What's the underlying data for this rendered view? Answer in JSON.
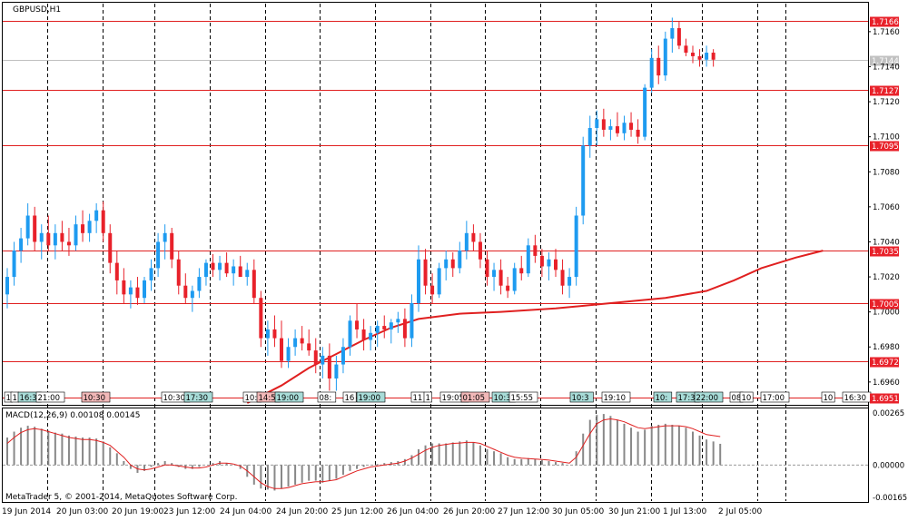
{
  "symbol_label": "GBPUSD,H1",
  "copyright": "MetaTrader 5, © 2001-2014, MetaQuotes Software Corp.",
  "macd_label": "MACD(12,26,9) 0.00108 0.00145",
  "colors": {
    "bull": "#1e9bf0",
    "bear": "#e8212a",
    "line": "#e02020",
    "grid": "#000000",
    "macd_hist": "#888888",
    "macd_signal": "#e02020",
    "label_bg_red": "#e8212a",
    "current_price_bg": "#c0c0c0"
  },
  "price_axis": {
    "ticks": [
      "1.7160",
      "1.7140",
      "1.7120",
      "1.7100",
      "1.7080",
      "1.7060",
      "1.7040",
      "1.7020",
      "1.7000",
      "1.6980",
      "1.6960"
    ],
    "current_price": "1.7144",
    "levels": [
      "1.7166",
      "1.7127",
      "1.7095",
      "1.7035",
      "1.7005",
      "1.6972",
      "1.6951"
    ]
  },
  "macd_axis": {
    "ticks": [
      "0.00265",
      "0.00000",
      "-0.00165"
    ]
  },
  "time_axis": {
    "labels": [
      "19 Jun 2014",
      "20 Jun 03:00",
      "20 Jun 19:00",
      "23 Jun 12:00",
      "24 Jun 04:00",
      "24 Jun 20:00",
      "25 Jun 12:00",
      "26 Jun 04:00",
      "26 Jun 20:00",
      "27 Jun 12:00",
      "30 Jun 05:00",
      "30 Jun 21:00",
      "1 Jul 13:00",
      "2 Jul 05:00"
    ]
  },
  "event_badges": [
    {
      "text": "1",
      "style": "plain"
    },
    {
      "text": "1",
      "style": "plain"
    },
    {
      "text": "16:3",
      "style": "teal"
    },
    {
      "text": "21:00",
      "style": "plain"
    },
    {
      "text": "10:30",
      "style": "red"
    },
    {
      "text": "10:30",
      "style": "plain"
    },
    {
      "text": "17:30",
      "style": "teal"
    },
    {
      "text": "10:",
      "style": "plain"
    },
    {
      "text": "14:5",
      "style": "red"
    },
    {
      "text": "19:00",
      "style": "teal"
    },
    {
      "text": "08:",
      "style": "plain"
    },
    {
      "text": "16",
      "style": "plain"
    },
    {
      "text": "19:00",
      "style": "teal"
    },
    {
      "text": "11",
      "style": "plain"
    },
    {
      "text": "1",
      "style": "plain"
    },
    {
      "text": "19:05",
      "style": "plain"
    },
    {
      "text": "01:05",
      "style": "red"
    },
    {
      "text": "10:3",
      "style": "teal"
    },
    {
      "text": "15:55",
      "style": "plain"
    },
    {
      "text": "10:3",
      "style": "teal"
    },
    {
      "text": "19:10",
      "style": "plain"
    },
    {
      "text": "10:",
      "style": "teal"
    },
    {
      "text": "17:3",
      "style": "teal"
    },
    {
      "text": "22:00",
      "style": "teal"
    },
    {
      "text": "08",
      "style": "plain"
    },
    {
      "text": "10",
      "style": "plain"
    },
    {
      "text": "17:00",
      "style": "plain"
    },
    {
      "text": "10",
      "style": "plain"
    },
    {
      "text": "16:30",
      "style": "plain"
    }
  ],
  "chart_data": {
    "type": "candlestick",
    "title": "GBPUSD,H1",
    "ylim": [
      1.6948,
      1.7176
    ],
    "candles": [
      [
        1.701,
        1.7025,
        1.7002,
        1.702
      ],
      [
        1.702,
        1.704,
        1.7015,
        1.7035
      ],
      [
        1.7035,
        1.7048,
        1.7028,
        1.7042
      ],
      [
        1.7042,
        1.7062,
        1.7038,
        1.7055
      ],
      [
        1.7055,
        1.706,
        1.7035,
        1.704
      ],
      [
        1.704,
        1.705,
        1.703,
        1.7045
      ],
      [
        1.7045,
        1.7055,
        1.7035,
        1.7038
      ],
      [
        1.7038,
        1.705,
        1.703,
        1.7045
      ],
      [
        1.7045,
        1.7052,
        1.7035,
        1.704
      ],
      [
        1.704,
        1.7048,
        1.7032,
        1.7038
      ],
      [
        1.7038,
        1.7055,
        1.7035,
        1.705
      ],
      [
        1.705,
        1.7058,
        1.704,
        1.7045
      ],
      [
        1.7045,
        1.7056,
        1.704,
        1.7052
      ],
      [
        1.7052,
        1.7062,
        1.7045,
        1.7058
      ],
      [
        1.7058,
        1.7063,
        1.704,
        1.7045
      ],
      [
        1.7045,
        1.705,
        1.7022,
        1.7028
      ],
      [
        1.7028,
        1.7035,
        1.701,
        1.7018
      ],
      [
        1.7018,
        1.7025,
        1.7005,
        1.701
      ],
      [
        1.701,
        1.7018,
        1.7002,
        1.7014
      ],
      [
        1.7014,
        1.702,
        1.7004,
        1.7008
      ],
      [
        1.7008,
        1.702,
        1.7005,
        1.7018
      ],
      [
        1.7018,
        1.703,
        1.7012,
        1.7025
      ],
      [
        1.7025,
        1.7045,
        1.702,
        1.704
      ],
      [
        1.704,
        1.705,
        1.703,
        1.7045
      ],
      [
        1.7045,
        1.7048,
        1.7025,
        1.703
      ],
      [
        1.703,
        1.7035,
        1.701,
        1.7015
      ],
      [
        1.7015,
        1.7022,
        1.7005,
        1.7008
      ],
      [
        1.7008,
        1.7015,
        1.7,
        1.7012
      ],
      [
        1.7012,
        1.7025,
        1.7008,
        1.702
      ],
      [
        1.702,
        1.703,
        1.7015,
        1.7028
      ],
      [
        1.7028,
        1.7033,
        1.702,
        1.7024
      ],
      [
        1.7024,
        1.7032,
        1.7018,
        1.7028
      ],
      [
        1.7028,
        1.7034,
        1.702,
        1.7022
      ],
      [
        1.7022,
        1.703,
        1.7015,
        1.7026
      ],
      [
        1.7026,
        1.7032,
        1.702,
        1.702
      ],
      [
        1.702,
        1.7028,
        1.7015,
        1.7024
      ],
      [
        1.7024,
        1.703,
        1.7005,
        1.7008
      ],
      [
        1.7008,
        1.7012,
        1.698,
        1.6985
      ],
      [
        1.6985,
        1.6995,
        1.6975,
        1.699
      ],
      [
        1.699,
        1.6998,
        1.698,
        1.6985
      ],
      [
        1.6985,
        1.6995,
        1.6968,
        1.6972
      ],
      [
        1.6972,
        1.6985,
        1.6968,
        1.698
      ],
      [
        1.698,
        1.699,
        1.6975,
        1.6985
      ],
      [
        1.6985,
        1.6992,
        1.6978,
        1.6982
      ],
      [
        1.6982,
        1.699,
        1.6975,
        1.6978
      ],
      [
        1.6978,
        1.6985,
        1.6965,
        1.697
      ],
      [
        1.697,
        1.698,
        1.6962,
        1.6975
      ],
      [
        1.6975,
        1.6982,
        1.6955,
        1.6962
      ],
      [
        1.6962,
        1.6975,
        1.6955,
        1.697
      ],
      [
        1.697,
        1.6985,
        1.6965,
        1.698
      ],
      [
        1.698,
        1.6998,
        1.6975,
        1.6995
      ],
      [
        1.6995,
        1.7005,
        1.6985,
        1.699
      ],
      [
        1.699,
        1.6996,
        1.6978,
        1.6984
      ],
      [
        1.6984,
        1.6992,
        1.6978,
        1.6988
      ],
      [
        1.6988,
        1.6995,
        1.698,
        1.6992
      ],
      [
        1.6992,
        1.6998,
        1.6985,
        1.699
      ],
      [
        1.699,
        1.6996,
        1.6982,
        1.6994
      ],
      [
        1.6994,
        1.7,
        1.6988,
        1.6996
      ],
      [
        1.6996,
        1.7002,
        1.698,
        1.6985
      ],
      [
        1.6985,
        1.701,
        1.698,
        1.7005
      ],
      [
        1.7005,
        1.7038,
        1.7,
        1.703
      ],
      [
        1.703,
        1.7036,
        1.701,
        1.7015
      ],
      [
        1.7015,
        1.7022,
        1.7005,
        1.701
      ],
      [
        1.701,
        1.7028,
        1.7008,
        1.7025
      ],
      [
        1.7025,
        1.7035,
        1.7018,
        1.703
      ],
      [
        1.703,
        1.7034,
        1.702,
        1.7025
      ],
      [
        1.7025,
        1.704,
        1.7022,
        1.7035
      ],
      [
        1.7035,
        1.7052,
        1.703,
        1.7045
      ],
      [
        1.7045,
        1.705,
        1.7035,
        1.704
      ],
      [
        1.704,
        1.7045,
        1.7025,
        1.703
      ],
      [
        1.703,
        1.7035,
        1.7015,
        1.702
      ],
      [
        1.702,
        1.7028,
        1.7012,
        1.7024
      ],
      [
        1.7024,
        1.703,
        1.701,
        1.7015
      ],
      [
        1.7015,
        1.702,
        1.7008,
        1.7012
      ],
      [
        1.7012,
        1.7028,
        1.701,
        1.7025
      ],
      [
        1.7025,
        1.7032,
        1.7018,
        1.7022
      ],
      [
        1.7022,
        1.7042,
        1.702,
        1.7038
      ],
      [
        1.7038,
        1.7044,
        1.7028,
        1.7032
      ],
      [
        1.7032,
        1.7036,
        1.702,
        1.7026
      ],
      [
        1.7026,
        1.7034,
        1.7018,
        1.703
      ],
      [
        1.703,
        1.7036,
        1.702,
        1.7024
      ],
      [
        1.7024,
        1.703,
        1.701,
        1.7015
      ],
      [
        1.7015,
        1.7025,
        1.7008,
        1.702
      ],
      [
        1.702,
        1.706,
        1.7015,
        1.7055
      ],
      [
        1.7055,
        1.71,
        1.705,
        1.7095
      ],
      [
        1.7095,
        1.7112,
        1.7088,
        1.7105
      ],
      [
        1.7105,
        1.7115,
        1.7095,
        1.711
      ],
      [
        1.711,
        1.7116,
        1.71,
        1.7104
      ],
      [
        1.7104,
        1.711,
        1.7098,
        1.7106
      ],
      [
        1.7106,
        1.7114,
        1.71,
        1.7102
      ],
      [
        1.7102,
        1.7112,
        1.7098,
        1.7108
      ],
      [
        1.7108,
        1.7114,
        1.71,
        1.7104
      ],
      [
        1.7104,
        1.711,
        1.7096,
        1.71
      ],
      [
        1.71,
        1.713,
        1.7098,
        1.7128
      ],
      [
        1.7128,
        1.715,
        1.7125,
        1.7145
      ],
      [
        1.7145,
        1.7152,
        1.713,
        1.7135
      ],
      [
        1.7135,
        1.716,
        1.7132,
        1.7156
      ],
      [
        1.7156,
        1.7168,
        1.7148,
        1.7162
      ],
      [
        1.7162,
        1.7166,
        1.715,
        1.7152
      ],
      [
        1.7152,
        1.7156,
        1.7146,
        1.7148
      ],
      [
        1.7148,
        1.7152,
        1.7142,
        1.7146
      ],
      [
        1.7146,
        1.715,
        1.714,
        1.7144
      ],
      [
        1.7144,
        1.7152,
        1.714,
        1.7148
      ],
      [
        1.7148,
        1.715,
        1.714,
        1.7144
      ]
    ],
    "moving_average": [
      [
        35,
        1.6948
      ],
      [
        40,
        1.6958
      ],
      [
        44,
        1.6968
      ],
      [
        48,
        1.6976
      ],
      [
        52,
        1.6984
      ],
      [
        56,
        1.6991
      ],
      [
        60,
        1.6996
      ],
      [
        66,
        1.6999
      ],
      [
        72,
        1.7
      ],
      [
        80,
        1.7002
      ],
      [
        88,
        1.7005
      ],
      [
        96,
        1.7008
      ],
      [
        102,
        1.7012
      ],
      [
        106,
        1.7018
      ],
      [
        110,
        1.7025
      ],
      [
        115,
        1.7031
      ],
      [
        119,
        1.7035
      ]
    ],
    "macd": {
      "label": "MACD(12,26,9) 0.00108 0.00145",
      "ylim": [
        -0.00165,
        0.00265
      ],
      "histogram": [
        0.0014,
        0.0017,
        0.0019,
        0.002,
        0.00195,
        0.00185,
        0.00175,
        0.00165,
        0.0016,
        0.0015,
        0.00145,
        0.0014,
        0.0014,
        0.00135,
        0.0012,
        0.0009,
        0.0006,
        0.0002,
        -0.0002,
        -0.0004,
        -0.0003,
        -0.0001,
        0.0001,
        0.0002,
        0.0001,
        -0.0001,
        -0.0002,
        -0.0002,
        -0.0001,
        0.0,
        0.0001,
        0.0002,
        0.0001,
        0.0,
        -0.0002,
        -0.0006,
        -0.001,
        -0.0012,
        -0.00125,
        -0.0013,
        -0.0012,
        -0.0011,
        -0.001,
        -0.0009,
        -0.0008,
        -0.0008,
        -0.0009,
        -0.0008,
        -0.0007,
        -0.0005,
        -0.0003,
        -0.0002,
        -0.0001,
        0.0,
        5e-05,
        0.0001,
        0.00015,
        0.0002,
        0.0003,
        0.0005,
        0.0008,
        0.001,
        0.0011,
        0.0011,
        0.0011,
        0.00115,
        0.0012,
        0.00125,
        0.00115,
        0.001,
        0.0008,
        0.0007,
        0.0006,
        0.0004,
        0.0003,
        0.0003,
        0.00035,
        0.0003,
        0.00025,
        0.0002,
        0.00015,
        0.0001,
        0.0,
        0.0007,
        0.0016,
        0.0023,
        0.00255,
        0.0026,
        0.0025,
        0.0023,
        0.0021,
        0.0019,
        0.0017,
        0.0018,
        0.002,
        0.00205,
        0.0021,
        0.00205,
        0.002,
        0.0019,
        0.0017,
        0.0015,
        0.0013,
        0.0012,
        0.00108
      ],
      "signal": [
        0.0011,
        0.0014,
        0.00165,
        0.0018,
        0.00185,
        0.0018,
        0.0017,
        0.0016,
        0.0015,
        0.0014,
        0.00135,
        0.0013,
        0.0013,
        0.00125,
        0.00115,
        0.001,
        0.0007,
        0.0004,
        0.0,
        -0.0002,
        -0.00025,
        -0.0002,
        -0.0001,
        0.0,
        0.0,
        -5e-05,
        -0.0001,
        -0.00015,
        -0.00015,
        -0.0001,
        0.0,
        0.0001,
        0.0001,
        5e-05,
        -5e-05,
        -0.0003,
        -0.0006,
        -0.0009,
        -0.0011,
        -0.0012,
        -0.0012,
        -0.00115,
        -0.00105,
        -0.00095,
        -0.0009,
        -0.00085,
        -0.00085,
        -0.0008,
        -0.00075,
        -0.0006,
        -0.00045,
        -0.0003,
        -0.0002,
        -0.0001,
        -5e-05,
        0.0,
        5e-05,
        0.0001,
        0.0002,
        0.00035,
        0.00055,
        0.00075,
        0.0009,
        0.001,
        0.00105,
        0.0011,
        0.00112,
        0.00115,
        0.00115,
        0.0011,
        0.00095,
        0.0008,
        0.00065,
        0.0005,
        0.0004,
        0.00035,
        0.00033,
        0.0003,
        0.00028,
        0.00025,
        0.0002,
        0.00015,
        0.0001,
        0.0004,
        0.001,
        0.0016,
        0.0021,
        0.0023,
        0.00235,
        0.0023,
        0.0022,
        0.00205,
        0.0019,
        0.00185,
        0.0019,
        0.00195,
        0.002,
        0.002,
        0.002,
        0.00195,
        0.00185,
        0.0017,
        0.00155,
        0.0015,
        0.00145
      ]
    }
  }
}
